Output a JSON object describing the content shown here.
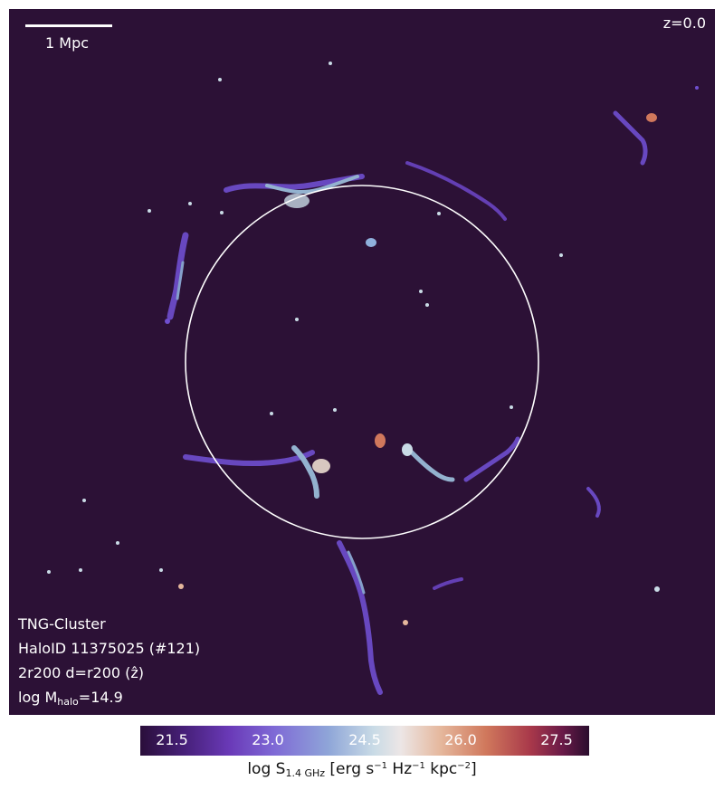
{
  "scalebar": {
    "label": "1 Mpc"
  },
  "redshift": "z=0.0",
  "info": {
    "simulation": "TNG-Cluster",
    "halo_id": "HaloID 11375025 (#121)",
    "projection": "2r200 d=r200 (ẑ)",
    "mass_prefix": "log M",
    "mass_sub": "halo",
    "mass_value": "=14.9"
  },
  "colorbar": {
    "ticks": [
      "21.5",
      "23.0",
      "24.5",
      "26.0",
      "27.5"
    ],
    "label_prefix": "log S",
    "label_sub": "1.4 GHz",
    "label_units": "[erg s",
    "exp1": "−1",
    "unit2": " Hz",
    "exp2": "−1",
    "unit3": " kpc",
    "exp3": "−2",
    "unit_close": "]"
  },
  "colors": {
    "background": "#2c1136",
    "circle": "#ffffff"
  }
}
